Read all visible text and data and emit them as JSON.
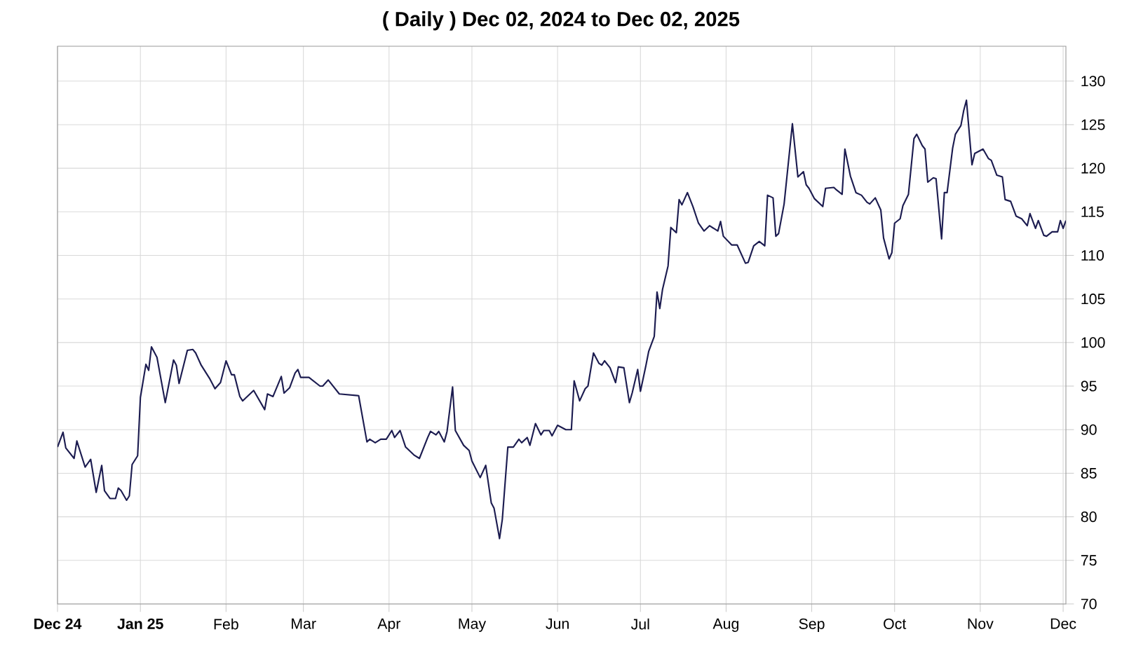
{
  "chart_data": {
    "type": "line",
    "title": "( Daily ) Dec 02, 2024 to Dec 02, 2025",
    "x": [
      "2024-12-02",
      "2024-12-04",
      "2024-12-05",
      "2024-12-08",
      "2024-12-09",
      "2024-12-12",
      "2024-12-14",
      "2024-12-16",
      "2024-12-18",
      "2024-12-19",
      "2024-12-21",
      "2024-12-23",
      "2024-12-24",
      "2024-12-25",
      "2024-12-27",
      "2024-12-28",
      "2024-12-29",
      "2024-12-31",
      "2025-01-01",
      "2025-01-03",
      "2025-01-04",
      "2025-01-05",
      "2025-01-07",
      "2025-01-10",
      "2025-01-13",
      "2025-01-14",
      "2025-01-15",
      "2025-01-18",
      "2025-01-20",
      "2025-01-21",
      "2025-01-23",
      "2025-01-25",
      "2025-01-26",
      "2025-01-28",
      "2025-01-30",
      "2025-02-01",
      "2025-02-03",
      "2025-02-04",
      "2025-02-06",
      "2025-02-07",
      "2025-02-11",
      "2025-02-15",
      "2025-02-16",
      "2025-02-18",
      "2025-02-21",
      "2025-02-22",
      "2025-02-24",
      "2025-02-26",
      "2025-02-27",
      "2025-02-28",
      "2025-03-03",
      "2025-03-07",
      "2025-03-08",
      "2025-03-10",
      "2025-03-14",
      "2025-03-21",
      "2025-03-24",
      "2025-03-25",
      "2025-03-27",
      "2025-03-29",
      "2025-03-31",
      "2025-04-02",
      "2025-04-03",
      "2025-04-05",
      "2025-04-07",
      "2025-04-10",
      "2025-04-12",
      "2025-04-15",
      "2025-04-16",
      "2025-04-18",
      "2025-04-19",
      "2025-04-21",
      "2025-04-22",
      "2025-04-24",
      "2025-04-25",
      "2025-04-28",
      "2025-04-30",
      "2025-05-01",
      "2025-05-04",
      "2025-05-06",
      "2025-05-08",
      "2025-05-09",
      "2025-05-11",
      "2025-05-12",
      "2025-05-14",
      "2025-05-16",
      "2025-05-18",
      "2025-05-19",
      "2025-05-21",
      "2025-05-22",
      "2025-05-24",
      "2025-05-26",
      "2025-05-27",
      "2025-05-29",
      "2025-05-30",
      "2025-06-01",
      "2025-06-04",
      "2025-06-06",
      "2025-06-07",
      "2025-06-09",
      "2025-06-11",
      "2025-06-12",
      "2025-06-14",
      "2025-06-16",
      "2025-06-17",
      "2025-06-18",
      "2025-06-20",
      "2025-06-22",
      "2025-06-23",
      "2025-06-25",
      "2025-06-27",
      "2025-06-28",
      "2025-06-30",
      "2025-07-01",
      "2025-07-03",
      "2025-07-04",
      "2025-07-06",
      "2025-07-07",
      "2025-07-08",
      "2025-07-09",
      "2025-07-11",
      "2025-07-12",
      "2025-07-14",
      "2025-07-15",
      "2025-07-16",
      "2025-07-18",
      "2025-07-20",
      "2025-07-22",
      "2025-07-24",
      "2025-07-26",
      "2025-07-29",
      "2025-07-30",
      "2025-07-31",
      "2025-08-03",
      "2025-08-05",
      "2025-08-08",
      "2025-08-09",
      "2025-08-11",
      "2025-08-13",
      "2025-08-15",
      "2025-08-16",
      "2025-08-18",
      "2025-08-19",
      "2025-08-20",
      "2025-08-22",
      "2025-08-25",
      "2025-08-27",
      "2025-08-29",
      "2025-08-30",
      "2025-08-31",
      "2025-09-02",
      "2025-09-05",
      "2025-09-06",
      "2025-09-09",
      "2025-09-10",
      "2025-09-12",
      "2025-09-13",
      "2025-09-15",
      "2025-09-17",
      "2025-09-19",
      "2025-09-21",
      "2025-09-22",
      "2025-09-24",
      "2025-09-26",
      "2025-09-27",
      "2025-09-29",
      "2025-09-30",
      "2025-10-01",
      "2025-10-03",
      "2025-10-04",
      "2025-10-06",
      "2025-10-08",
      "2025-10-09",
      "2025-10-11",
      "2025-10-12",
      "2025-10-13",
      "2025-10-15",
      "2025-10-16",
      "2025-10-18",
      "2025-10-19",
      "2025-10-20",
      "2025-10-22",
      "2025-10-23",
      "2025-10-25",
      "2025-10-26",
      "2025-10-27",
      "2025-10-29",
      "2025-10-30",
      "2025-11-02",
      "2025-11-04",
      "2025-11-05",
      "2025-11-07",
      "2025-11-09",
      "2025-11-10",
      "2025-11-12",
      "2025-11-14",
      "2025-11-16",
      "2025-11-18",
      "2025-11-19",
      "2025-11-21",
      "2025-11-22",
      "2025-11-24",
      "2025-11-25",
      "2025-11-27",
      "2025-11-29",
      "2025-11-30",
      "2025-12-01",
      "2025-12-02"
    ],
    "series": [
      {
        "color": "#1c1c50",
        "values": [
          88.0,
          89.7,
          87.9,
          86.7,
          88.7,
          85.7,
          86.6,
          82.8,
          85.9,
          83.0,
          82.1,
          82.1,
          83.3,
          83.0,
          81.9,
          82.4,
          86.0,
          87.0,
          93.7,
          97.5,
          96.8,
          99.5,
          98.3,
          93.1,
          98.0,
          97.4,
          95.3,
          99.1,
          99.2,
          98.8,
          97.4,
          96.4,
          95.9,
          94.7,
          95.4,
          97.9,
          96.3,
          96.3,
          93.8,
          93.3,
          94.5,
          92.3,
          94.1,
          93.8,
          96.1,
          94.2,
          94.8,
          96.5,
          96.9,
          96.0,
          96.0,
          95.0,
          95.0,
          95.7,
          94.1,
          93.9,
          88.6,
          88.9,
          88.5,
          88.9,
          88.9,
          89.9,
          89.1,
          89.9,
          88.0,
          87.1,
          86.7,
          89.1,
          89.8,
          89.4,
          89.8,
          88.6,
          89.8,
          94.9,
          89.9,
          88.2,
          87.6,
          86.4,
          84.5,
          85.9,
          81.6,
          81.0,
          77.5,
          79.7,
          88.0,
          88.0,
          88.9,
          88.5,
          89.1,
          88.2,
          90.7,
          89.4,
          89.9,
          89.9,
          89.3,
          90.5,
          90.0,
          90.0,
          95.6,
          93.3,
          94.7,
          95.0,
          98.8,
          97.6,
          97.4,
          97.9,
          97.1,
          95.4,
          97.2,
          97.1,
          93.1,
          94.2,
          96.9,
          94.4,
          97.4,
          99.0,
          100.7,
          105.8,
          103.9,
          106.1,
          108.8,
          113.2,
          112.6,
          116.4,
          115.8,
          117.2,
          115.6,
          113.7,
          112.8,
          113.4,
          112.8,
          113.9,
          112.2,
          111.2,
          111.2,
          109.1,
          109.2,
          111.1,
          111.6,
          111.1,
          116.9,
          116.6,
          112.2,
          112.5,
          115.9,
          125.1,
          119.0,
          119.6,
          118.1,
          117.7,
          116.5,
          115.6,
          117.7,
          117.8,
          117.5,
          117.0,
          122.2,
          119.1,
          117.2,
          116.9,
          116.1,
          115.9,
          116.6,
          115.2,
          112.0,
          109.6,
          110.3,
          113.7,
          114.2,
          115.7,
          117.0,
          123.4,
          123.9,
          122.6,
          122.2,
          118.4,
          118.9,
          118.8,
          111.9,
          117.2,
          117.2,
          122.3,
          123.9,
          124.9,
          126.6,
          127.8,
          120.4,
          121.7,
          122.2,
          121.1,
          120.9,
          119.2,
          119.0,
          116.4,
          116.2,
          114.5,
          114.2,
          113.4,
          114.8,
          113.1,
          114.0,
          112.3,
          112.2,
          112.7,
          112.7,
          114.0,
          113.1,
          114.0
        ]
      }
    ],
    "xlim": [
      "2024-12-02",
      "2025-12-02"
    ],
    "xticks": [
      {
        "value": "2024-12-02",
        "label": "**Dec 24**"
      },
      {
        "value": "2025-01-01",
        "label": "**Jan 25**"
      },
      {
        "value": "2025-02-01",
        "label": "Feb"
      },
      {
        "value": "2025-03-01",
        "label": "Mar"
      },
      {
        "value": "2025-04-01",
        "label": "Apr"
      },
      {
        "value": "2025-05-01",
        "label": "May"
      },
      {
        "value": "2025-06-01",
        "label": "Jun"
      },
      {
        "value": "2025-07-01",
        "label": "Jul"
      },
      {
        "value": "2025-08-01",
        "label": "Aug"
      },
      {
        "value": "2025-09-01",
        "label": "Sep"
      },
      {
        "value": "2025-10-01",
        "label": "Oct"
      },
      {
        "value": "2025-11-01",
        "label": "Nov"
      },
      {
        "value": "2025-12-01",
        "label": "Dec"
      }
    ],
    "ylim": [
      70,
      134
    ],
    "yticks": [
      70,
      75,
      80,
      85,
      90,
      95,
      100,
      105,
      110,
      115,
      120,
      125,
      130
    ],
    "grid": true,
    "marker": "none",
    "line_style": "solid"
  }
}
